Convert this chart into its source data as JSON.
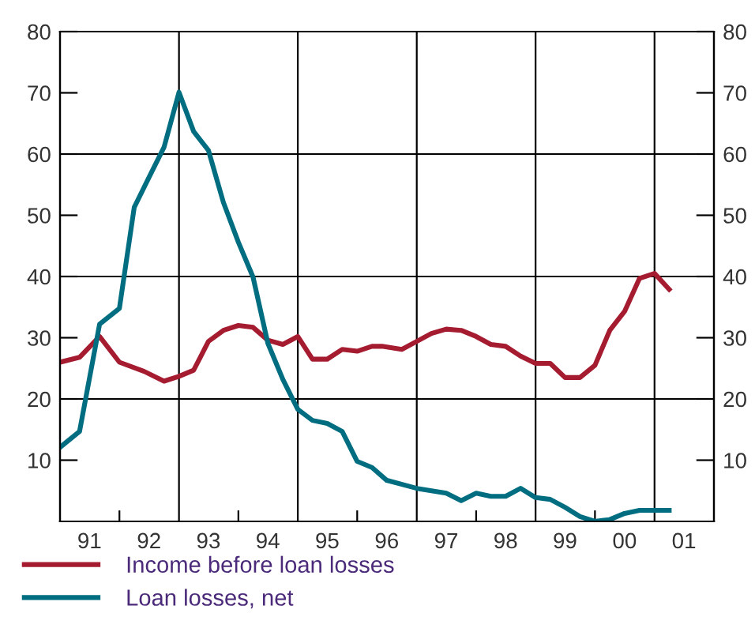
{
  "chart_data": {
    "type": "line",
    "series": [
      {
        "name": "Income before loan losses",
        "color": "#a51c30",
        "x": [
          "1991-01",
          "1991-05",
          "1991-09",
          "1992-01",
          "1992-06",
          "1992-10",
          "1993-01",
          "1993-04",
          "1993-07",
          "1993-10",
          "1994-01",
          "1994-04",
          "1994-07",
          "1994-10",
          "1995-01",
          "1995-04",
          "1995-07",
          "1995-10",
          "1996-01",
          "1996-04",
          "1996-06",
          "1996-10",
          "1997-01",
          "1997-04",
          "1997-07",
          "1997-10",
          "1998-01",
          "1998-04",
          "1998-07",
          "1998-10",
          "1999-01",
          "1999-04",
          "1999-07",
          "1999-10",
          "2000-01",
          "2000-04",
          "2000-07",
          "2000-10",
          "2001-01",
          "2001-04"
        ],
        "values": [
          26.0,
          26.8,
          30.2,
          26.0,
          24.5,
          22.9,
          23.7,
          24.7,
          29.4,
          31.2,
          32.0,
          31.7,
          29.6,
          28.9,
          30.2,
          26.5,
          26.5,
          28.1,
          27.8,
          28.6,
          28.6,
          28.1,
          29.4,
          30.7,
          31.4,
          31.2,
          30.2,
          28.9,
          28.6,
          27.0,
          25.8,
          25.8,
          23.5,
          23.5,
          25.5,
          31.2,
          34.3,
          39.7,
          40.5,
          37.9
        ]
      },
      {
        "name": "Loan losses, net",
        "color": "#006e80",
        "x": [
          "1991-01",
          "1991-05",
          "1991-09",
          "1992-01",
          "1992-04",
          "1992-07",
          "1992-10",
          "1993-01",
          "1993-04",
          "1993-07",
          "1993-10",
          "1994-01",
          "1994-04",
          "1994-07",
          "1994-10",
          "1995-01",
          "1995-04",
          "1995-07",
          "1995-10",
          "1996-01",
          "1996-04",
          "1996-07",
          "1997-01",
          "1997-07",
          "1997-10",
          "1998-01",
          "1998-04",
          "1998-07",
          "1998-10",
          "1999-01",
          "1999-04",
          "1999-07",
          "1999-10",
          "2000-01",
          "2000-04",
          "2000-07",
          "2000-10",
          "2001-01",
          "2001-04"
        ],
        "values": [
          12.1,
          14.7,
          32.2,
          34.8,
          51.3,
          56.2,
          61.1,
          70.1,
          63.7,
          60.6,
          52.1,
          45.6,
          39.9,
          29.1,
          23.2,
          18.3,
          16.5,
          16.0,
          14.7,
          9.8,
          8.8,
          6.7,
          5.4,
          4.6,
          3.4,
          4.6,
          4.1,
          4.1,
          5.4,
          3.9,
          3.6,
          2.3,
          0.8,
          0.0,
          0.3,
          1.3,
          1.8,
          1.8,
          1.8
        ]
      }
    ],
    "xlim": [
      "1991-01-01",
      "2002-01-01"
    ],
    "ylim": [
      0,
      80
    ],
    "y2lim": [
      0,
      80
    ],
    "xticks": [
      {
        "value": "1991-07-01",
        "label": "91"
      },
      {
        "value": "1992-07-01",
        "label": "92"
      },
      {
        "value": "1993-07-01",
        "label": "93"
      },
      {
        "value": "1994-07-01",
        "label": "94"
      },
      {
        "value": "1995-07-01",
        "label": "95"
      },
      {
        "value": "1996-07-01",
        "label": "96"
      },
      {
        "value": "1997-07-01",
        "label": "97"
      },
      {
        "value": "1998-07-01",
        "label": "98"
      },
      {
        "value": "1999-07-01",
        "label": "99"
      },
      {
        "value": "2000-07-01",
        "label": "00"
      },
      {
        "value": "2001-07-01",
        "label": "01"
      },
      {
        "value": "1992-01-01",
        "label": null
      },
      {
        "value": "1994-01-01",
        "label": null
      },
      {
        "value": "1996-01-01",
        "label": null
      },
      {
        "value": "1998-01-01",
        "label": null
      },
      {
        "value": "2000-01-01",
        "label": null
      }
    ],
    "yticks": [
      10,
      20,
      30,
      40,
      50,
      60,
      70,
      80
    ],
    "y2ticks": [
      10,
      20,
      30,
      40,
      50,
      60,
      70,
      80
    ],
    "ref_lines": [
      {
        "axis": "x",
        "value": "1993-01-01",
        "color": "#000000"
      },
      {
        "axis": "x",
        "value": "1995-01-01",
        "color": "#000000"
      },
      {
        "axis": "x",
        "value": "1997-01-01",
        "color": "#000000"
      },
      {
        "axis": "x",
        "value": "1999-01-01",
        "color": "#000000"
      },
      {
        "axis": "x",
        "value": "2001-01-01",
        "color": "#000000"
      },
      {
        "axis": "y",
        "value": 20,
        "color": "#000000"
      },
      {
        "axis": "y",
        "value": 40,
        "color": "#000000"
      },
      {
        "axis": "y",
        "value": 60,
        "color": "#000000"
      }
    ],
    "legend": "bottom",
    "marker": "none",
    "line_style": "solid"
  }
}
